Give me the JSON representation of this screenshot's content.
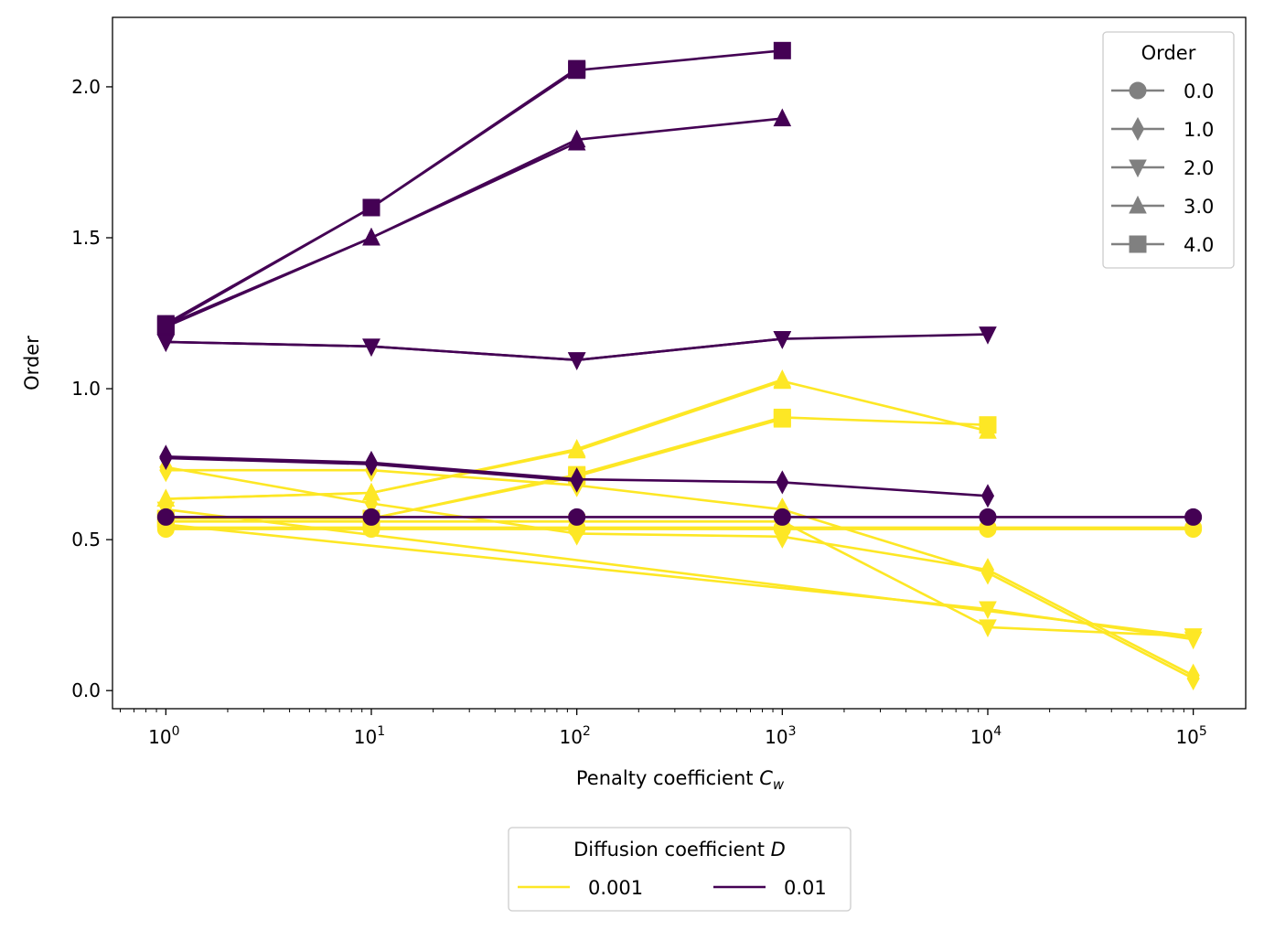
{
  "chart_data": {
    "type": "line",
    "xlabel": "Penalty coefficient",
    "xlabel_symbol": "C",
    "xlabel_subscript": "w",
    "ylabel": "Order",
    "x_scale": "log",
    "xlim": [
      0.55,
      180000
    ],
    "ylim": [
      -0.06,
      2.23
    ],
    "x_ticks": [
      1,
      10,
      100,
      1000,
      10000,
      100000
    ],
    "x_tick_labels": [
      {
        "base": "10",
        "exp": "0"
      },
      {
        "base": "10",
        "exp": "1"
      },
      {
        "base": "10",
        "exp": "2"
      },
      {
        "base": "10",
        "exp": "3"
      },
      {
        "base": "10",
        "exp": "4"
      },
      {
        "base": "10",
        "exp": "5"
      }
    ],
    "y_ticks": [
      0.0,
      0.5,
      1.0,
      1.5,
      2.0
    ],
    "y_tick_labels": [
      "0.0",
      "0.5",
      "1.0",
      "1.5",
      "2.0"
    ],
    "grid": false,
    "order_legend": {
      "title": "Order",
      "placement": "top-right",
      "color": "#808080",
      "entries": [
        {
          "label": "0.0",
          "marker": "circle"
        },
        {
          "label": "1.0",
          "marker": "thin-diamond"
        },
        {
          "label": "2.0",
          "marker": "triangle-down"
        },
        {
          "label": "3.0",
          "marker": "triangle-up"
        },
        {
          "label": "4.0",
          "marker": "square"
        }
      ]
    },
    "diffusion_legend": {
      "title": "Diffusion coefficient",
      "title_symbol": "D",
      "placement": "bottom-center",
      "entries": [
        {
          "label": "0.001",
          "color": "#fde725"
        },
        {
          "label": "0.01",
          "color": "#440154"
        }
      ]
    },
    "series": [
      {
        "color": "#fde725",
        "marker": "circle",
        "x": [
          1,
          10,
          100,
          1000,
          10000,
          100000
        ],
        "y": [
          0.535,
          0.535,
          0.535,
          0.535,
          0.535,
          0.535
        ]
      },
      {
        "color": "#fde725",
        "marker": "circle",
        "x": [
          1,
          10,
          100,
          1000,
          10000,
          100000
        ],
        "y": [
          0.54,
          0.54,
          0.54,
          0.54,
          0.54,
          0.54
        ]
      },
      {
        "color": "#fde725",
        "marker": "thin-diamond",
        "x": [
          1,
          10,
          100,
          1000,
          10000,
          100000
        ],
        "y": [
          0.73,
          0.73,
          0.68,
          0.6,
          0.39,
          0.04
        ]
      },
      {
        "color": "#fde725",
        "marker": "thin-diamond",
        "x": [
          1,
          10,
          100,
          1000,
          10000,
          100000
        ],
        "y": [
          0.74,
          0.62,
          0.52,
          0.51,
          0.4,
          0.05
        ]
      },
      {
        "color": "#fde725",
        "marker": "triangle-down",
        "x": [
          1,
          10,
          100,
          1000,
          10000,
          100000
        ],
        "y": [
          0.56,
          0.56,
          0.56,
          0.56,
          0.21,
          0.18
        ]
      },
      {
        "color": "#fde725",
        "marker": "triangle-down",
        "x": [
          1,
          100000
        ],
        "y": [
          0.6,
          0.18
        ]
      },
      {
        "color": "#fde725",
        "marker": "triangle-down",
        "x": [
          1,
          10000,
          100000
        ],
        "y": [
          0.55,
          0.27,
          0.17
        ]
      },
      {
        "color": "#fde725",
        "marker": "triangle-up",
        "x": [
          1,
          10,
          100,
          1000,
          10000
        ],
        "y": [
          0.635,
          0.655,
          0.795,
          1.025,
          0.86
        ]
      },
      {
        "color": "#fde725",
        "marker": "triangle-up",
        "x": [
          1,
          10,
          100,
          1000
        ],
        "y": [
          0.635,
          0.655,
          0.8,
          1.03
        ]
      },
      {
        "color": "#fde725",
        "marker": "square",
        "x": [
          1,
          10,
          100,
          1000,
          10000
        ],
        "y": [
          0.57,
          0.57,
          0.715,
          0.905,
          0.88
        ]
      },
      {
        "color": "#fde725",
        "marker": "square",
        "x": [
          1,
          10,
          100,
          1000
        ],
        "y": [
          0.57,
          0.57,
          0.71,
          0.9
        ]
      },
      {
        "color": "#440154",
        "marker": "circle",
        "x": [
          1,
          10,
          100,
          1000,
          10000,
          100000
        ],
        "y": [
          0.575,
          0.575,
          0.575,
          0.575,
          0.575,
          0.575
        ]
      },
      {
        "color": "#440154",
        "marker": "thin-diamond",
        "x": [
          1,
          10,
          100,
          1000,
          10000
        ],
        "y": [
          0.775,
          0.755,
          0.7,
          0.69,
          0.645
        ]
      },
      {
        "color": "#440154",
        "marker": "thin-diamond",
        "x": [
          1,
          10,
          100
        ],
        "y": [
          0.77,
          0.75,
          0.695
        ]
      },
      {
        "color": "#440154",
        "marker": "triangle-down",
        "x": [
          1,
          10,
          100,
          1000,
          10000
        ],
        "y": [
          1.155,
          1.14,
          1.095,
          1.165,
          1.18
        ]
      },
      {
        "color": "#440154",
        "marker": "triangle-down",
        "x": [
          1,
          10,
          100,
          1000
        ],
        "y": [
          1.155,
          1.14,
          1.095,
          1.165
        ]
      },
      {
        "color": "#440154",
        "marker": "triangle-up",
        "x": [
          1,
          10,
          100,
          1000
        ],
        "y": [
          1.21,
          1.5,
          1.825,
          1.895
        ]
      },
      {
        "color": "#440154",
        "marker": "triangle-up",
        "x": [
          1,
          10,
          100
        ],
        "y": [
          1.205,
          1.5,
          1.815
        ]
      },
      {
        "color": "#440154",
        "marker": "square",
        "x": [
          1,
          10,
          100,
          1000
        ],
        "y": [
          1.215,
          1.6,
          2.055,
          2.12
        ]
      },
      {
        "color": "#440154",
        "marker": "square",
        "x": [
          1,
          10,
          100
        ],
        "y": [
          1.21,
          1.6,
          2.06
        ]
      }
    ]
  }
}
